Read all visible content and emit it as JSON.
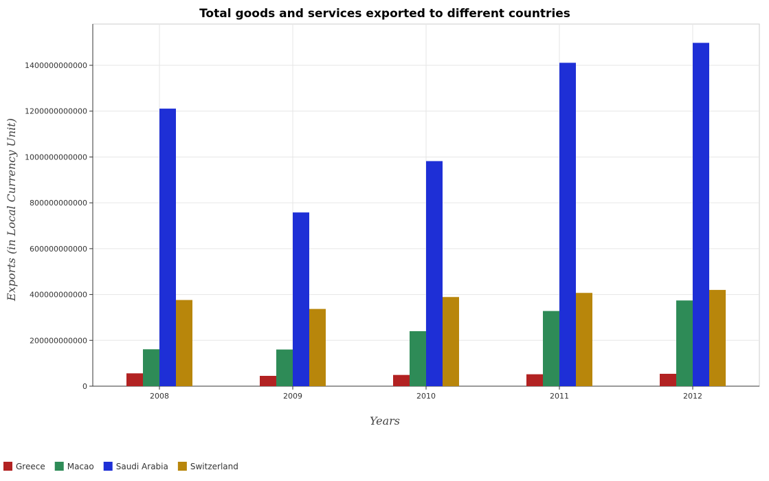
{
  "chart_data": {
    "type": "bar",
    "title": "Total goods and services exported to different countries",
    "xlabel": "Years",
    "ylabel": "Exports (in Local Currency Unit)",
    "categories": [
      "2008",
      "2009",
      "2010",
      "2011",
      "2012"
    ],
    "ylim": [
      0,
      1580000000000
    ],
    "yticks": [
      0,
      200000000000,
      400000000000,
      600000000000,
      800000000000,
      1000000000000,
      1200000000000,
      1400000000000
    ],
    "ytick_labels": [
      "0",
      "200000000000",
      "400000000000",
      "600000000000",
      "800000000000",
      "1000000000000",
      "1200000000000",
      "1400000000000"
    ],
    "grid": true,
    "legend_position": "bottom-left",
    "series": [
      {
        "name": "Greece",
        "color": "#b22222",
        "values": [
          56000000000,
          45000000000,
          49000000000,
          52000000000,
          54000000000
        ]
      },
      {
        "name": "Macao",
        "color": "#2e8b57",
        "values": [
          161000000000,
          160000000000,
          240000000000,
          328000000000,
          374000000000
        ]
      },
      {
        "name": "Saudi Arabia",
        "color": "#1e2fd6",
        "values": [
          1211000000000,
          758000000000,
          982000000000,
          1411000000000,
          1498000000000
        ]
      },
      {
        "name": "Switzerland",
        "color": "#b8860b",
        "values": [
          376000000000,
          337000000000,
          389000000000,
          407000000000,
          420000000000
        ]
      }
    ]
  }
}
